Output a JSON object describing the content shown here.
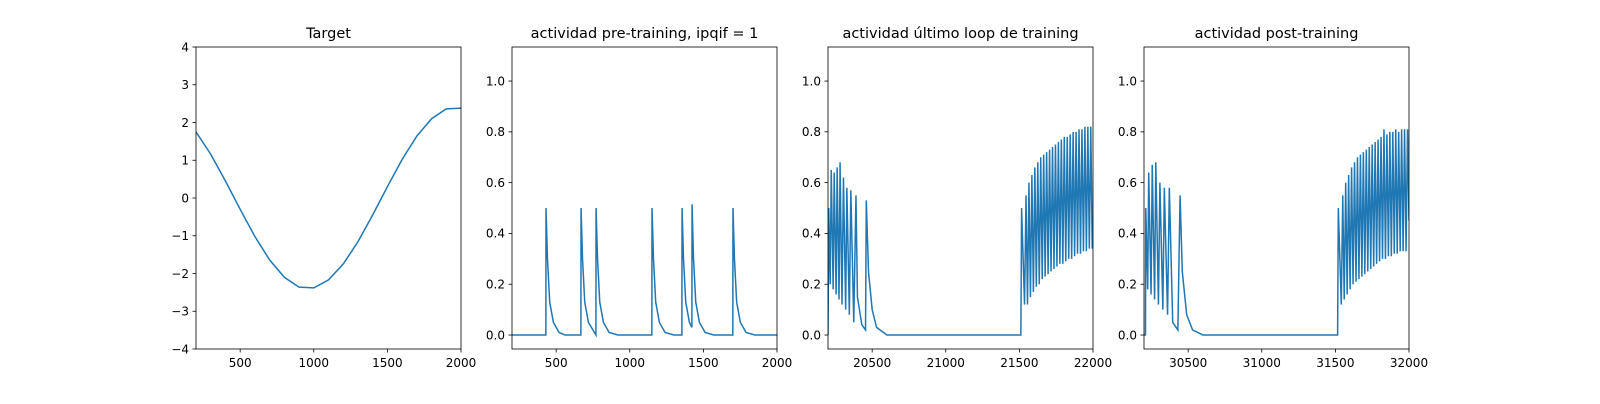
{
  "chart_data": [
    {
      "type": "line",
      "title": "Target",
      "color": "#1f77b4",
      "x": [
        200,
        300,
        400,
        500,
        600,
        700,
        800,
        900,
        1000,
        1100,
        1200,
        1300,
        1400,
        1500,
        1600,
        1700,
        1800,
        1900,
        2000
      ],
      "values": [
        1.75,
        1.16,
        0.45,
        -0.3,
        -1.02,
        -1.64,
        -2.1,
        -2.36,
        -2.38,
        -2.17,
        -1.75,
        -1.16,
        -0.45,
        0.3,
        1.02,
        1.64,
        2.1,
        2.36,
        2.38
      ],
      "xlim": [
        200,
        2000
      ],
      "xticks": [
        500,
        1000,
        1500,
        2000
      ],
      "ylim": [
        -4,
        4
      ],
      "yticks": [
        {
          "value": -4,
          "label": "−4"
        },
        {
          "value": -3,
          "label": "−3"
        },
        {
          "value": -2,
          "label": "−2"
        },
        {
          "value": -1,
          "label": "−1"
        },
        0,
        1,
        2,
        3,
        4
      ]
    },
    {
      "type": "line",
      "title": "actividad pre-training, ipqif = 1",
      "color": "#1f77b4",
      "x": [
        200,
        430,
        431,
        441,
        456,
        481,
        520,
        560,
        668,
        669,
        679,
        694,
        719,
        760,
        770,
        771,
        781,
        796,
        821,
        860,
        920,
        1150,
        1151,
        1161,
        1176,
        1201,
        1240,
        1300,
        1354,
        1355,
        1365,
        1380,
        1405,
        1422,
        1423,
        1433,
        1448,
        1473,
        1512,
        1570,
        1700,
        1701,
        1711,
        1726,
        1751,
        1790,
        1850,
        2000
      ],
      "values": [
        0,
        0,
        0.5,
        0.3,
        0.13,
        0.05,
        0.01,
        0,
        0,
        0.5,
        0.3,
        0.13,
        0.05,
        0.01,
        0,
        0.5,
        0.3,
        0.13,
        0.05,
        0.01,
        0,
        0,
        0.5,
        0.3,
        0.13,
        0.05,
        0.01,
        0,
        0,
        0.5,
        0.3,
        0.13,
        0.05,
        0.03,
        0.515,
        0.3,
        0.13,
        0.05,
        0.01,
        0,
        0,
        0.5,
        0.3,
        0.13,
        0.05,
        0.01,
        0,
        0
      ],
      "xlim": [
        200,
        2000
      ],
      "xticks": [
        500,
        1000,
        1500,
        2000
      ],
      "ylim": [
        -0.055,
        1.134
      ],
      "yticks": [
        {
          "value": 0,
          "label": "0.0"
        },
        0.2,
        0.4,
        0.6,
        0.8,
        {
          "value": 1,
          "label": "1.0"
        }
      ]
    },
    {
      "type": "line",
      "title": "actividad último loop de training",
      "color": "#1f77b4",
      "x": [
        20200,
        20205,
        20215,
        20222,
        20235,
        20242,
        20255,
        20262,
        20275,
        20282,
        20295,
        20305,
        20320,
        20328,
        20345,
        20355,
        20375,
        20390,
        20400,
        20430,
        20455,
        20460,
        20475,
        20500,
        20530,
        20600,
        21510,
        21515,
        21535,
        21545,
        21555,
        21565,
        21575,
        21585,
        21595,
        21605,
        21615,
        21625,
        21635,
        21645,
        21655,
        21665,
        21675,
        21685,
        21695,
        21705,
        21715,
        21725,
        21735,
        21745,
        21755,
        21765,
        21775,
        21785,
        21795,
        21805,
        21815,
        21825,
        21835,
        21845,
        21855,
        21865,
        21875,
        21885,
        21895,
        21905,
        21915,
        21925,
        21935,
        21945,
        21955,
        21965,
        21975,
        21985,
        21995,
        22000
      ],
      "values": [
        0,
        0.5,
        0.2,
        0.65,
        0.18,
        0.64,
        0.16,
        0.66,
        0.14,
        0.68,
        0.12,
        0.62,
        0.1,
        0.58,
        0.08,
        0.57,
        0.05,
        0.55,
        0.15,
        0.04,
        0.02,
        0.53,
        0.25,
        0.1,
        0.03,
        0,
        0,
        0.5,
        0.12,
        0.55,
        0.12,
        0.6,
        0.15,
        0.63,
        0.17,
        0.66,
        0.19,
        0.68,
        0.2,
        0.7,
        0.22,
        0.71,
        0.23,
        0.72,
        0.24,
        0.73,
        0.25,
        0.74,
        0.26,
        0.75,
        0.27,
        0.76,
        0.28,
        0.77,
        0.28,
        0.78,
        0.29,
        0.78,
        0.3,
        0.79,
        0.3,
        0.8,
        0.31,
        0.8,
        0.32,
        0.81,
        0.32,
        0.81,
        0.33,
        0.82,
        0.33,
        0.82,
        0.34,
        0.82,
        0.34,
        0.47
      ],
      "xlim": [
        20200,
        22000
      ],
      "xticks": [
        20500,
        21000,
        21500,
        22000
      ],
      "ylim": [
        -0.055,
        1.134
      ],
      "yticks": [
        {
          "value": 0,
          "label": "0.0"
        },
        0.2,
        0.4,
        0.6,
        0.8,
        {
          "value": 1,
          "label": "1.0"
        }
      ]
    },
    {
      "type": "line",
      "title": "actividad post-training",
      "color": "#1f77b4",
      "x": [
        30200,
        30210,
        30212,
        30225,
        30232,
        30248,
        30256,
        30272,
        30280,
        30298,
        30308,
        30328,
        30338,
        30360,
        30372,
        30395,
        30430,
        30445,
        30460,
        30490,
        30530,
        30600,
        31515,
        31520,
        31540,
        31550,
        31560,
        31570,
        31580,
        31590,
        31600,
        31610,
        31620,
        31630,
        31640,
        31650,
        31660,
        31670,
        31680,
        31690,
        31700,
        31710,
        31720,
        31730,
        31740,
        31750,
        31760,
        31770,
        31780,
        31790,
        31800,
        31810,
        31820,
        31830,
        31840,
        31850,
        31860,
        31870,
        31880,
        31890,
        31900,
        31910,
        31920,
        31930,
        31940,
        31950,
        31960,
        31970,
        31980,
        31990,
        32000
      ],
      "values": [
        0,
        0,
        0.5,
        0.18,
        0.64,
        0.16,
        0.67,
        0.14,
        0.68,
        0.12,
        0.6,
        0.1,
        0.58,
        0.08,
        0.58,
        0.05,
        0.02,
        0.55,
        0.25,
        0.08,
        0.02,
        0,
        0,
        0.5,
        0.12,
        0.55,
        0.14,
        0.6,
        0.16,
        0.63,
        0.18,
        0.66,
        0.2,
        0.68,
        0.21,
        0.7,
        0.22,
        0.71,
        0.23,
        0.72,
        0.24,
        0.73,
        0.25,
        0.74,
        0.26,
        0.75,
        0.27,
        0.76,
        0.28,
        0.77,
        0.29,
        0.78,
        0.3,
        0.81,
        0.3,
        0.79,
        0.31,
        0.8,
        0.31,
        0.8,
        0.32,
        0.81,
        0.32,
        0.8,
        0.33,
        0.81,
        0.33,
        0.81,
        0.33,
        0.81,
        0.45
      ],
      "xlim": [
        30200,
        32000
      ],
      "xticks": [
        30500,
        31000,
        31500,
        32000
      ],
      "ylim": [
        -0.055,
        1.134
      ],
      "yticks": [
        {
          "value": 0,
          "label": "0.0"
        },
        0.2,
        0.4,
        0.6,
        0.8,
        {
          "value": 1,
          "label": "1.0"
        }
      ]
    }
  ]
}
